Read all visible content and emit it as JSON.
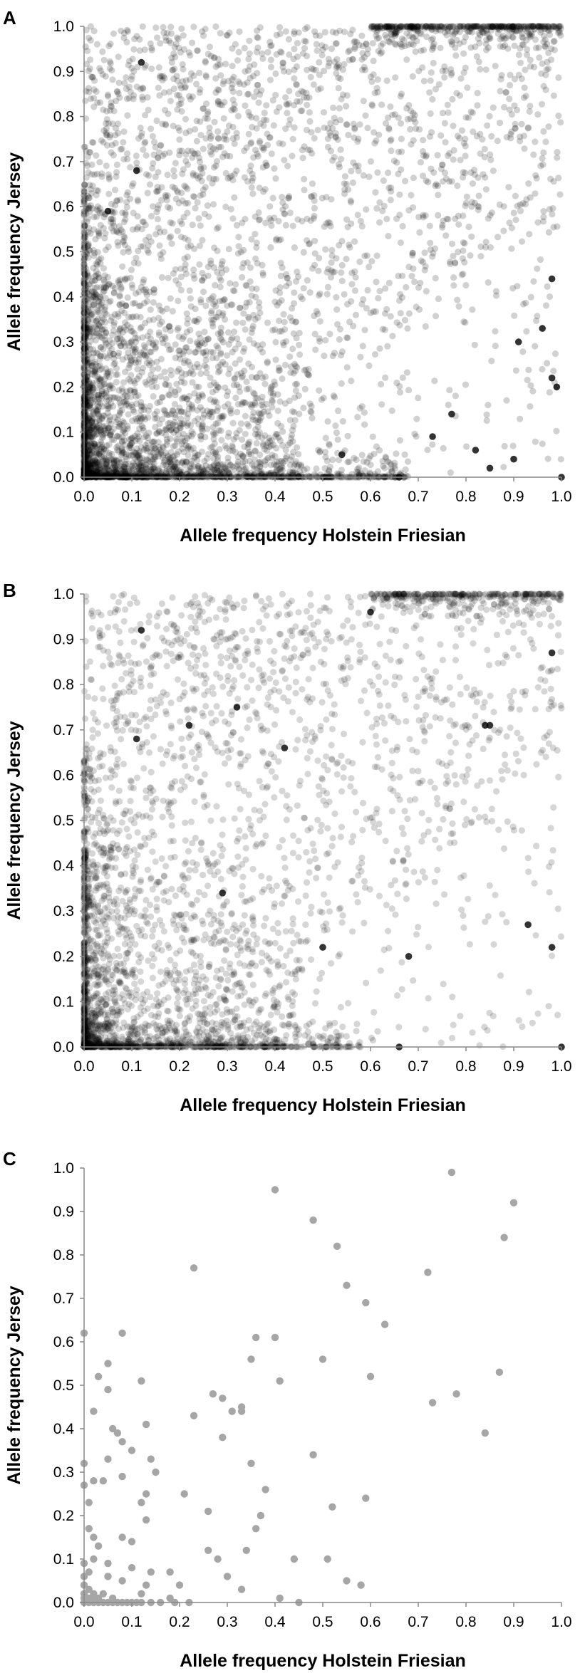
{
  "chart_data": [
    {
      "type": "scatter",
      "panel_label": "A",
      "xlabel": "Allele frequency Holstein Friesian",
      "ylabel": "Allele frequency Jersey",
      "xlim": [
        0,
        1
      ],
      "ylim": [
        0,
        1
      ],
      "xticks": [
        "0.0",
        "0.1",
        "0.2",
        "0.3",
        "0.4",
        "0.5",
        "0.6",
        "0.7",
        "0.8",
        "0.9",
        "1.0"
      ],
      "yticks": [
        "0.0",
        "0.1",
        "0.2",
        "0.3",
        "0.4",
        "0.5",
        "0.6",
        "0.7",
        "0.8",
        "0.9",
        "1.0"
      ],
      "grid": false,
      "marker_color": "#000000",
      "marker_opacity": 0.18,
      "density": "very dense point cloud spanning the unit square; heaviest concentration near (0,0), dense band along y=0 up to x≈0.65 and along x=0 up to y≈0.6, dense cluster along y=1 from x≈0.6 to 1.0, sparse toward lower-right (x>0.7, y<0.3)",
      "points": [
        [
          0.12,
          0.92
        ],
        [
          0.11,
          0.68
        ],
        [
          0.05,
          0.59
        ],
        [
          0.98,
          0.22
        ],
        [
          0.66,
          0.0
        ],
        [
          1.0,
          0.0
        ],
        [
          0.99,
          0.2
        ],
        [
          0.82,
          0.06
        ],
        [
          0.73,
          0.09
        ],
        [
          0.54,
          0.05
        ],
        [
          0.91,
          0.3
        ],
        [
          0.96,
          0.33
        ],
        [
          0.98,
          0.44
        ],
        [
          0.9,
          0.04
        ],
        [
          0.85,
          0.02
        ],
        [
          0.77,
          0.14
        ]
      ]
    },
    {
      "type": "scatter",
      "panel_label": "B",
      "xlabel": "Allele frequency Holstein Friesian",
      "ylabel": "Allele frequency Jersey",
      "xlim": [
        0,
        1
      ],
      "ylim": [
        0,
        1
      ],
      "xticks": [
        "0.0",
        "0.1",
        "0.2",
        "0.3",
        "0.4",
        "0.5",
        "0.6",
        "0.7",
        "0.8",
        "0.9",
        "1.0"
      ],
      "yticks": [
        "0.0",
        "0.1",
        "0.2",
        "0.3",
        "0.4",
        "0.5",
        "0.6",
        "0.7",
        "0.8",
        "0.9",
        "1.0"
      ],
      "grid": false,
      "marker_color": "#000000",
      "marker_opacity": 0.16,
      "density": "dense point cloud slightly sparser than A; heaviest near (0,0), band along y=0 up to x≈0.55, dense cluster along y=1 from x≈0.7 to 1.0, sparse lower-right",
      "points": [
        [
          0.12,
          0.92
        ],
        [
          0.11,
          0.68
        ],
        [
          0.22,
          0.71
        ],
        [
          0.6,
          0.96
        ],
        [
          0.98,
          0.87
        ],
        [
          0.98,
          0.22
        ],
        [
          0.66,
          0.0
        ],
        [
          1.0,
          0.0
        ],
        [
          0.85,
          0.71
        ],
        [
          0.84,
          0.71
        ],
        [
          0.32,
          0.75
        ],
        [
          0.42,
          0.66
        ],
        [
          0.5,
          0.22
        ],
        [
          0.68,
          0.2
        ],
        [
          0.29,
          0.34
        ],
        [
          0.93,
          0.27
        ]
      ]
    },
    {
      "type": "scatter",
      "panel_label": "C",
      "xlabel": "Allele frequency Holstein Friesian",
      "ylabel": "Allele frequency Jersey",
      "xlim": [
        0,
        1
      ],
      "ylim": [
        0,
        1
      ],
      "xticks": [
        "0.0",
        "0.1",
        "0.2",
        "0.3",
        "0.4",
        "0.5",
        "0.6",
        "0.7",
        "0.8",
        "0.9",
        "1.0"
      ],
      "yticks": [
        "0.0",
        "0.1",
        "0.2",
        "0.3",
        "0.4",
        "0.5",
        "0.6",
        "0.7",
        "0.8",
        "0.9",
        "1.0"
      ],
      "grid": false,
      "marker_color": "#a6a6a6",
      "marker_opacity": 1,
      "points": [
        [
          0.4,
          0.95
        ],
        [
          0.77,
          0.99
        ],
        [
          0.9,
          0.92
        ],
        [
          0.88,
          0.84
        ],
        [
          0.48,
          0.88
        ],
        [
          0.53,
          0.82
        ],
        [
          0.23,
          0.77
        ],
        [
          0.72,
          0.76
        ],
        [
          0.55,
          0.73
        ],
        [
          0.59,
          0.69
        ],
        [
          0.63,
          0.64
        ],
        [
          0.0,
          0.62
        ],
        [
          0.08,
          0.62
        ],
        [
          0.36,
          0.61
        ],
        [
          0.4,
          0.61
        ],
        [
          0.35,
          0.56
        ],
        [
          0.5,
          0.56
        ],
        [
          0.05,
          0.55
        ],
        [
          0.6,
          0.52
        ],
        [
          0.87,
          0.53
        ],
        [
          0.03,
          0.52
        ],
        [
          0.12,
          0.51
        ],
        [
          0.41,
          0.51
        ],
        [
          0.05,
          0.49
        ],
        [
          0.78,
          0.48
        ],
        [
          0.27,
          0.48
        ],
        [
          0.29,
          0.47
        ],
        [
          0.73,
          0.46
        ],
        [
          0.33,
          0.45
        ],
        [
          0.31,
          0.44
        ],
        [
          0.33,
          0.44
        ],
        [
          0.02,
          0.44
        ],
        [
          0.23,
          0.43
        ],
        [
          0.13,
          0.41
        ],
        [
          0.06,
          0.4
        ],
        [
          0.07,
          0.39
        ],
        [
          0.84,
          0.39
        ],
        [
          0.29,
          0.38
        ],
        [
          0.08,
          0.37
        ],
        [
          0.1,
          0.35
        ],
        [
          0.48,
          0.34
        ],
        [
          0.14,
          0.33
        ],
        [
          0.05,
          0.33
        ],
        [
          0.0,
          0.32
        ],
        [
          0.35,
          0.32
        ],
        [
          0.02,
          0.28
        ],
        [
          0.04,
          0.28
        ],
        [
          0.15,
          0.3
        ],
        [
          0.08,
          0.29
        ],
        [
          0.0,
          0.27
        ],
        [
          0.38,
          0.26
        ],
        [
          0.13,
          0.25
        ],
        [
          0.21,
          0.25
        ],
        [
          0.59,
          0.24
        ],
        [
          0.01,
          0.23
        ],
        [
          0.12,
          0.23
        ],
        [
          0.52,
          0.22
        ],
        [
          0.26,
          0.21
        ],
        [
          0.37,
          0.2
        ],
        [
          0.13,
          0.19
        ],
        [
          0.01,
          0.17
        ],
        [
          0.36,
          0.17
        ],
        [
          0.02,
          0.15
        ],
        [
          0.08,
          0.15
        ],
        [
          0.1,
          0.14
        ],
        [
          0.03,
          0.13
        ],
        [
          0.26,
          0.12
        ],
        [
          0.34,
          0.12
        ],
        [
          0.28,
          0.1
        ],
        [
          0.44,
          0.1
        ],
        [
          0.51,
          0.1
        ],
        [
          0.02,
          0.1
        ],
        [
          0.05,
          0.09
        ],
        [
          0.1,
          0.08
        ],
        [
          0.14,
          0.07
        ],
        [
          0.18,
          0.07
        ],
        [
          0.01,
          0.07
        ],
        [
          0.05,
          0.06
        ],
        [
          0.3,
          0.06
        ],
        [
          0.55,
          0.05
        ],
        [
          0.08,
          0.05
        ],
        [
          0.13,
          0.04
        ],
        [
          0.2,
          0.04
        ],
        [
          0.33,
          0.03
        ],
        [
          0.58,
          0.04
        ],
        [
          0.01,
          0.03
        ],
        [
          0.04,
          0.02
        ],
        [
          0.41,
          0.01
        ],
        [
          0.45,
          0.0
        ],
        [
          0.12,
          0.02
        ],
        [
          0.18,
          0.01
        ],
        [
          0.0,
          0.0
        ],
        [
          0.01,
          0.0
        ],
        [
          0.02,
          0.0
        ],
        [
          0.03,
          0.0
        ],
        [
          0.04,
          0.0
        ],
        [
          0.05,
          0.0
        ],
        [
          0.06,
          0.0
        ],
        [
          0.07,
          0.0
        ],
        [
          0.08,
          0.0
        ],
        [
          0.09,
          0.0
        ],
        [
          0.1,
          0.0
        ],
        [
          0.11,
          0.0
        ],
        [
          0.12,
          0.0
        ],
        [
          0.14,
          0.0
        ],
        [
          0.16,
          0.0
        ],
        [
          0.19,
          0.0
        ],
        [
          0.22,
          0.0
        ],
        [
          0.0,
          0.01
        ],
        [
          0.0,
          0.02
        ],
        [
          0.0,
          0.04
        ],
        [
          0.0,
          0.06
        ],
        [
          0.0,
          0.09
        ],
        [
          0.01,
          0.01
        ],
        [
          0.02,
          0.01
        ],
        [
          0.03,
          0.01
        ],
        [
          0.06,
          0.01
        ],
        [
          0.02,
          0.02
        ]
      ]
    }
  ]
}
